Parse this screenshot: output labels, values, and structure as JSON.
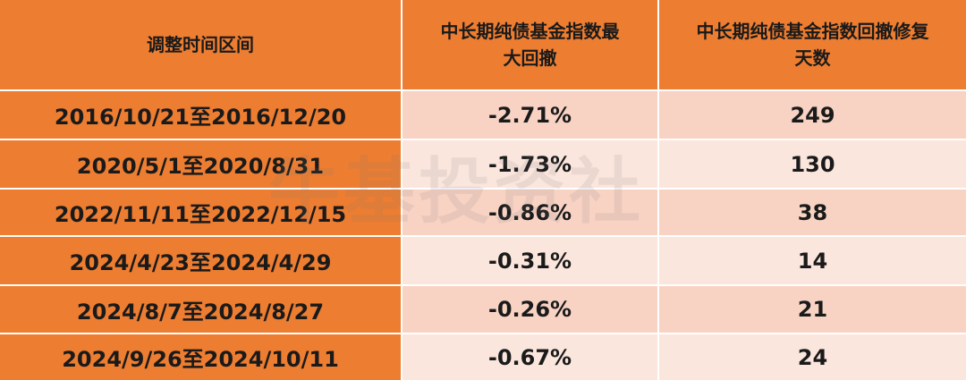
{
  "table": {
    "header": [
      "调整时间区间",
      "中长期纯债基金指数最大回撤",
      "中长期纯债基金指数回撤修复天数"
    ],
    "rows": [
      [
        "2016/10/21至2016/12/20",
        "-2.71%",
        "249"
      ],
      [
        "2020/5/1至2020/8/31",
        "-1.73%",
        "130"
      ],
      [
        "2022/11/11至2022/12/15",
        "-0.86%",
        "38"
      ],
      [
        "2024/4/23至2024/4/29",
        "-0.31%",
        "14"
      ],
      [
        "2024/8/7至2024/8/27",
        "-0.26%",
        "21"
      ],
      [
        "2024/9/26至2024/10/11",
        "-0.67%",
        "24"
      ]
    ]
  },
  "watermark": "牛基投资社"
}
